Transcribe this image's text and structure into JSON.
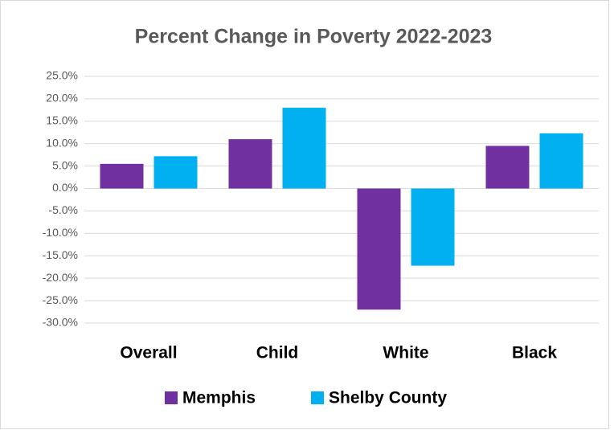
{
  "chart_data": {
    "type": "bar",
    "title": "Percent Change in Poverty 2022-2023",
    "categories": [
      "Overall",
      "Child",
      "White",
      "Black"
    ],
    "series": [
      {
        "name": "Memphis",
        "color": "#7030a0",
        "values": [
          5.5,
          11.0,
          -27.0,
          9.5
        ]
      },
      {
        "name": "Shelby County",
        "color": "#00b0f0",
        "values": [
          7.2,
          18.0,
          -17.2,
          12.3
        ]
      }
    ],
    "ylim": [
      -30,
      25
    ],
    "yticks": [
      {
        "value": -30,
        "label": "-30.0%"
      },
      {
        "value": -25,
        "label": "-25.0%"
      },
      {
        "value": -20,
        "label": "-20.0%"
      },
      {
        "value": -15,
        "label": "-15.0%"
      },
      {
        "value": -10,
        "label": "-10.0%"
      },
      {
        "value": -5,
        "label": "-5.0%"
      },
      {
        "value": 0,
        "label": "0.0%"
      },
      {
        "value": 5,
        "label": "5.0%"
      },
      {
        "value": 10,
        "label": "10.0%"
      },
      {
        "value": 15,
        "label": "15.0%"
      },
      {
        "value": 20,
        "label": "20.0%"
      },
      {
        "value": 25,
        "label": "25.0%"
      }
    ],
    "grid": true,
    "legend": "bottom"
  }
}
